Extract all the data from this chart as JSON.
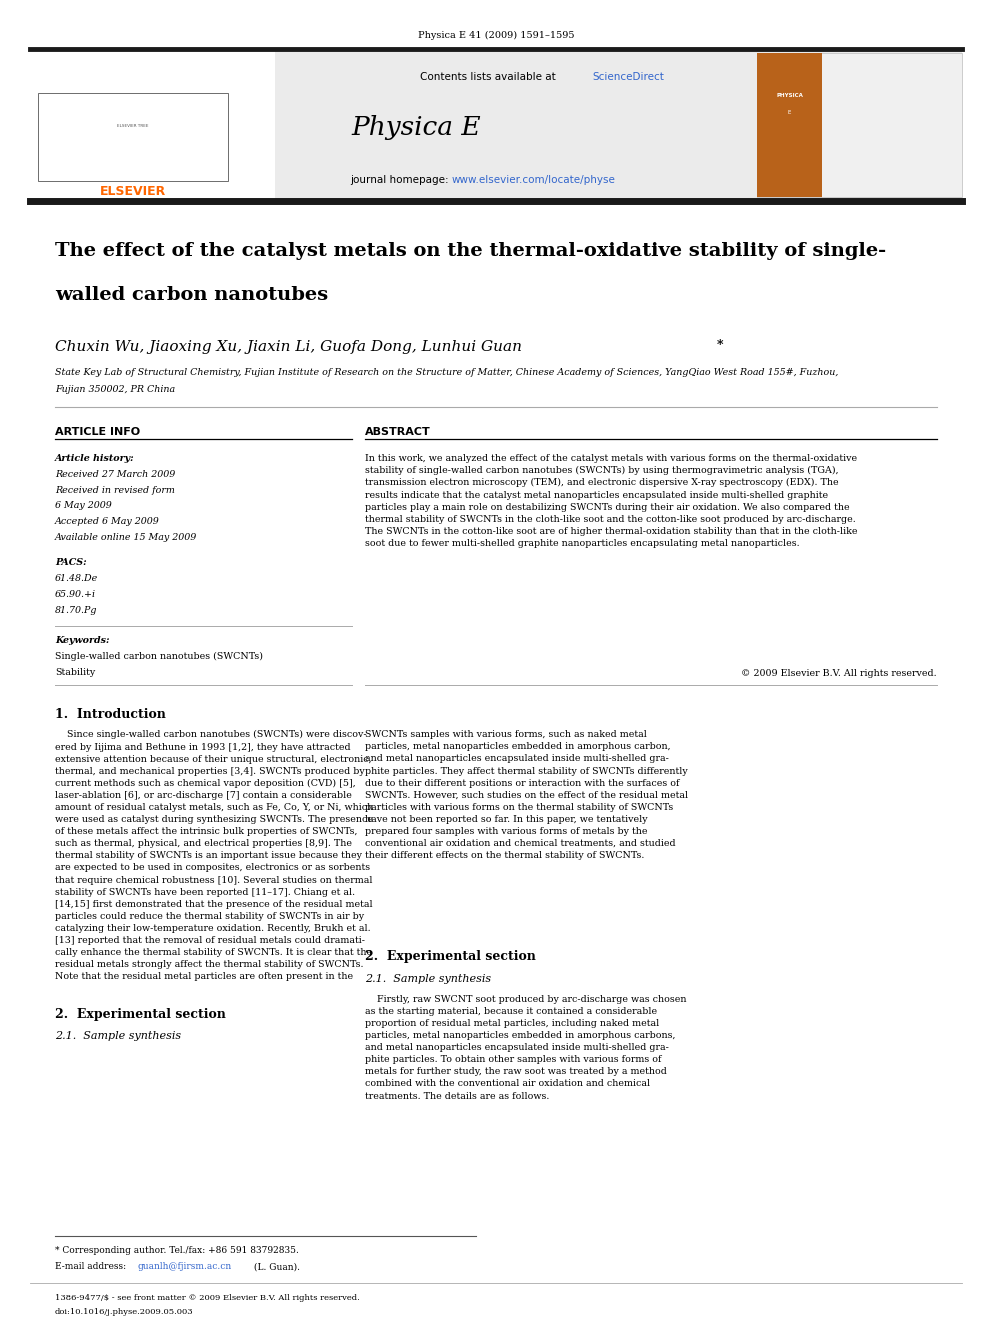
{
  "page_width": 9.92,
  "page_height": 13.23,
  "bg_color": "#ffffff",
  "header_journal_ref": "Physica E 41 (2009) 1591–1595",
  "header_bg": "#e8e8e8",
  "journal_name": "Physica E",
  "contents_text": "Contents lists available at ",
  "sciencedirect_text": "ScienceDirect",
  "sciencedirect_color": "#3366cc",
  "journal_url": "www.elsevier.com/locate/physe",
  "journal_url_color": "#3366cc",
  "journal_homepage_label": "journal homepage: ",
  "title_line1": "The effect of the catalyst metals on the thermal-oxidative stability of single-",
  "title_line2": "walled carbon nanotubes",
  "authors": "Chuxin Wu, Jiaoxing Xu, Jiaxin Li, Guofa Dong, Lunhui Guan",
  "author_star": "*",
  "affiliation_line1": "State Key Lab of Structural Chemistry, Fujian Institute of Research on the Structure of Matter, Chinese Academy of Sciences, YangQiao West Road 155#, Fuzhou,",
  "affiliation_line2": "Fujian 350002, PR China",
  "article_info_header": "ARTICLE INFO",
  "abstract_header": "ABSTRACT",
  "article_history_label": "Article history:",
  "received": "Received 27 March 2009",
  "received_revised_1": "Received in revised form",
  "received_revised_2": "6 May 2009",
  "accepted": "Accepted 6 May 2009",
  "available": "Available online 15 May 2009",
  "pacs_label": "PACS:",
  "pacs_1": "61.48.De",
  "pacs_2": "65.90.+i",
  "pacs_3": "81.70.Pg",
  "keywords_label": "Keywords:",
  "keyword_1": "Single-walled carbon nanotubes (SWCNTs)",
  "keyword_2": "Stability",
  "copyright": "© 2009 Elsevier B.V. All rights reserved.",
  "intro_header": "1.  Introduction",
  "col1_intro": "    Since single-walled carbon nanotubes (SWCNTs) were discov-\nered by Iijima and Bethune in 1993 [1,2], they have attracted\nextensive attention because of their unique structural, electronic,\nthermal, and mechanical properties [3,4]. SWCNTs produced by\ncurrent methods such as chemical vapor deposition (CVD) [5],\nlaser-ablation [6], or arc-discharge [7] contain a considerable\namount of residual catalyst metals, such as Fe, Co, Y, or Ni, which\nwere used as catalyst during synthesizing SWCNTs. The presence\nof these metals affect the intrinsic bulk properties of SWCNTs,\nsuch as thermal, physical, and electrical properties [8,9]. The\nthermal stability of SWCNTs is an important issue because they\nare expected to be used in composites, electronics or as sorbents\nthat require chemical robustness [10]. Several studies on thermal\nstability of SWCNTs have been reported [11–17]. Chiang et al.\n[14,15] first demonstrated that the presence of the residual metal\nparticles could reduce the thermal stability of SWCNTs in air by\ncatalyzing their low-temperature oxidation. Recently, Brukh et al.\n[13] reported that the removal of residual metals could dramati-\ncally enhance the thermal stability of SWCNTs. It is clear that the\nresidual metals strongly affect the thermal stability of SWCNTs.\nNote that the residual metal particles are often present in the",
  "col2_intro": "SWCNTs samples with various forms, such as naked metal\nparticles, metal nanoparticles embedded in amorphous carbon,\nand metal nanoparticles encapsulated inside multi-shelled gra-\nphite particles. They affect thermal stability of SWCNTs differently\ndue to their different positions or interaction with the surfaces of\nSWCNTs. However, such studies on the effect of the residual metal\nparticles with various forms on the thermal stability of SWCNTs\nhave not been reported so far. In this paper, we tentatively\nprepared four samples with various forms of metals by the\nconventional air oxidation and chemical treatments, and studied\ntheir different effects on the thermal stability of SWCNTs.",
  "section2_header": "2.  Experimental section",
  "section21_header": "2.1.  Sample synthesis",
  "col2_sec2": "    Firstly, raw SWCNT soot produced by arc-discharge was chosen\nas the starting material, because it contained a considerable\nproportion of residual metal particles, including naked metal\nparticles, metal nanoparticles embedded in amorphous carbons,\nand metal nanoparticles encapsulated inside multi-shelled gra-\nphite particles. To obtain other samples with various forms of\nmetals for further study, the raw soot was treated by a method\ncombined with the conventional air oxidation and chemical\ntreatments. The details are as follows.",
  "footnote_1": "* Corresponding author. Tel./fax: +86 591 83792835.",
  "footnote_email_pre": "E-mail address: ",
  "footnote_email_link": "guanlh@fjirsm.ac.cn",
  "footnote_email_post": " (L. Guan).",
  "footer_issn": "1386-9477/$ - see front matter © 2009 Elsevier B.V. All rights reserved.",
  "footer_doi": "doi:10.1016/j.physe.2009.05.003",
  "elsevier_color": "#ff6600",
  "thick_bar_color": "#1a1a1a",
  "ref_color": "#3366cc",
  "abstract_text_lines": [
    "In this work, we analyzed the effect of the catalyst metals with various forms on the thermal-oxidative",
    "stability of single-walled carbon nanotubes (SWCNTs) by using thermogravimetric analysis (TGA),",
    "transmission electron microscopy (TEM), and electronic dispersive X-ray spectroscopy (EDX). The",
    "results indicate that the catalyst metal nanoparticles encapsulated inside multi-shelled graphite",
    "particles play a main role on destabilizing SWCNTs during their air oxidation. We also compared the",
    "thermal stability of SWCNTs in the cloth-like soot and the cotton-like soot produced by arc-discharge.",
    "The SWCNTs in the cotton-like soot are of higher thermal-oxidation stability than that in the cloth-like",
    "soot due to fewer multi-shelled graphite nanoparticles encapsulating metal nanoparticles."
  ]
}
